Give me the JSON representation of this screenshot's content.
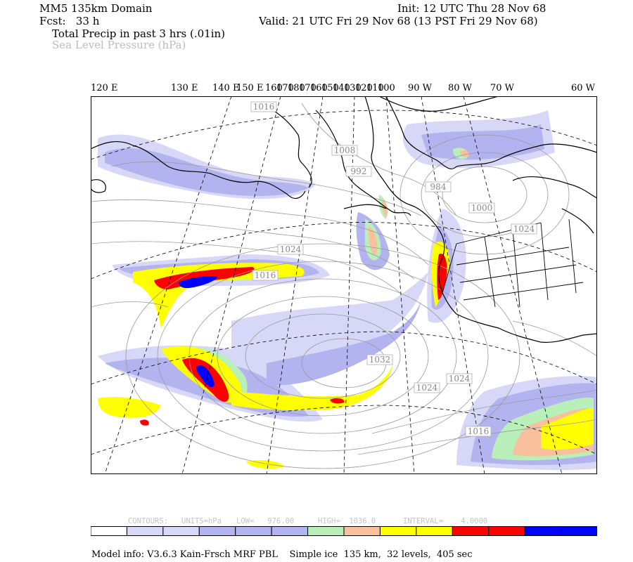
{
  "header": {
    "domain": "MM5 135km Domain",
    "fcst": "Fcst:   33 h",
    "field1": "Total Precip in past 3 hrs (.01in)",
    "field2": "Sea Level Pressure (hPa)",
    "init": "Init: 12 UTC Thu 28 Nov 68",
    "valid": "Valid: 21 UTC Fri 29 Nov 68 (13 PST Fri 29 Nov 68)"
  },
  "lon_labels": [
    "120 E",
    "130 E",
    "140 E",
    "150 E",
    "160",
    "170",
    "180",
    "170",
    "160",
    "150",
    "140",
    "130",
    "120",
    "110",
    "100",
    "90 W",
    "80 W",
    "70 W",
    "60 W"
  ],
  "isobar_labels": [
    "1016",
    "1008",
    "992",
    "984",
    "1000",
    "1024",
    "1024",
    "1016",
    "1032",
    "1024",
    "1024",
    "1016"
  ],
  "contours": {
    "label": "CONTOURS:",
    "units": "UNITS=hPa",
    "low": "LOW=   976.00",
    "high": "HIGH=  1036.0",
    "interval": "INTERVAL=    4.0000"
  },
  "legend_colors": [
    "#ffffff",
    "#d7d7f7",
    "#d7d7f7",
    "#b3b3f0",
    "#b3b3f0",
    "#b3b3f0",
    "#b9f0b9",
    "#f8c09c",
    "#ffff00",
    "#ffff00",
    "#ff0000",
    "#ff0000",
    "#0000ff",
    "#0000ff"
  ],
  "footer": {
    "model_info": "Model info: V3.6.3 Kain-Frsch MRF PBL    Simple ice  135 km,  32 levels,  405 sec"
  }
}
